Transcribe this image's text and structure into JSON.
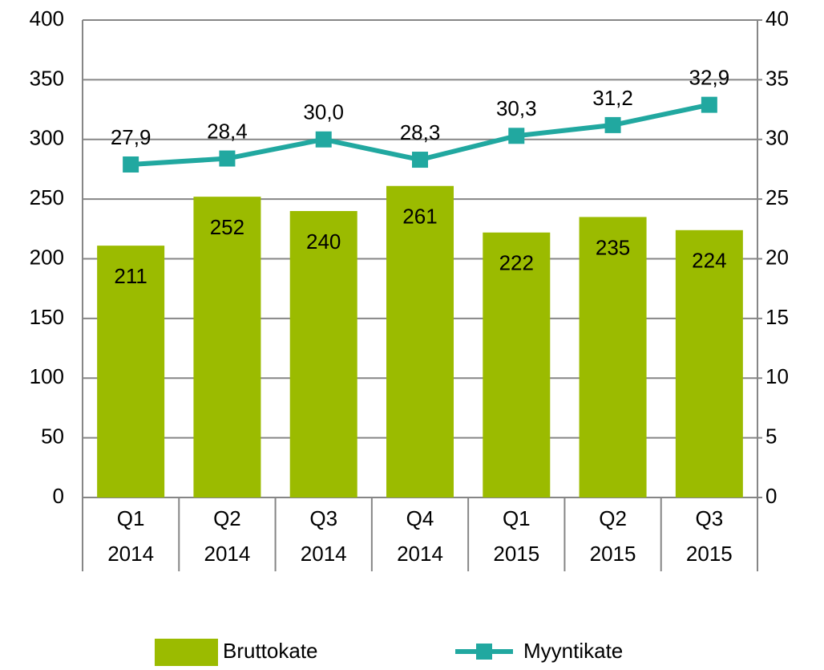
{
  "chart_data": {
    "type": "bar",
    "categories": [
      [
        "Q1",
        "2014"
      ],
      [
        "Q2",
        "2014"
      ],
      [
        "Q3",
        "2014"
      ],
      [
        "Q4",
        "2014"
      ],
      [
        "Q1",
        "2015"
      ],
      [
        "Q2",
        "2015"
      ],
      [
        "Q3",
        "2015"
      ]
    ],
    "series": [
      {
        "name": "Bruttokate",
        "type": "bar",
        "color": "#9bbb00",
        "values": [
          211,
          252,
          240,
          261,
          222,
          235,
          224
        ]
      },
      {
        "name": "Myyntikate",
        "type": "line",
        "axis": "y2",
        "color": "#21a8a0",
        "values": [
          27.9,
          28.4,
          30.0,
          28.3,
          30.3,
          31.2,
          32.9
        ],
        "value_labels": [
          "27,9",
          "28,4",
          "30,0",
          "28,3",
          "30,3",
          "31,2",
          "32,9"
        ]
      }
    ],
    "ylim": [
      0,
      400
    ],
    "yticks": [
      0,
      50,
      100,
      150,
      200,
      250,
      300,
      350,
      400
    ],
    "y2lim": [
      0,
      40
    ],
    "y2ticks": [
      0,
      5,
      10,
      15,
      20,
      25,
      30,
      35,
      40
    ],
    "grid": true,
    "legend": "bottom"
  }
}
